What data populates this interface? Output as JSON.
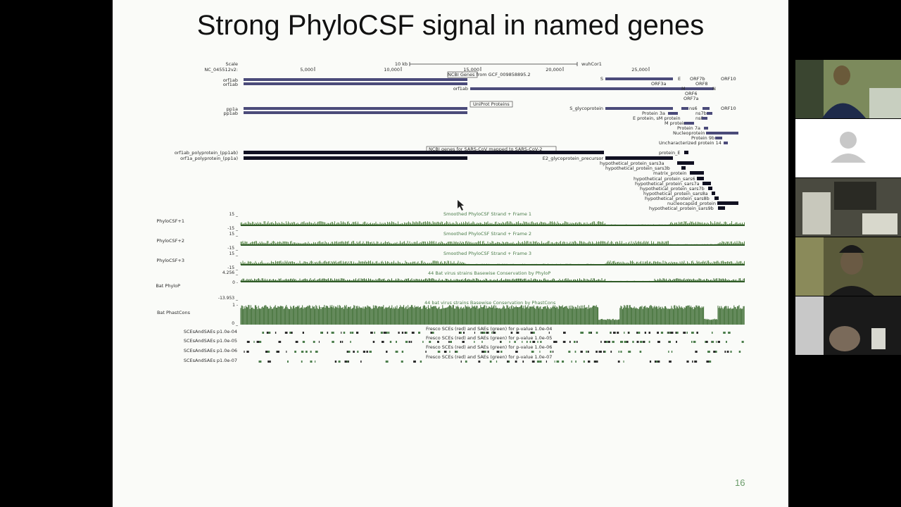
{
  "slide": {
    "title": "Strong PhyloCSF signal in named genes",
    "page_number": "16"
  },
  "browser": {
    "scale_label": "Scale",
    "chrom_label": "NC_045512v2:",
    "scale_bar": "10 kb",
    "assembly": "wuhCor1",
    "ruler": [
      "5,000",
      "10,000",
      "15,000",
      "20,000",
      "25,000"
    ],
    "ncbi_genes_title": "NCBI Genes from GCF_009858895.2",
    "uniprot_title": "UniProt Proteins",
    "ncbi_sars_title": "NCBI genes for SARS-CoV mapped to SARS-CoV-2",
    "left_labels_ncbi": [
      "orf1ab",
      "orf1ab"
    ],
    "left_labels_uniprot": [
      "pp1a",
      "pp1ab"
    ],
    "left_labels_sars": [
      "orf1ab_polyprotein_(pp1ab)",
      "orf1a_polyprotein_(pp1a)"
    ],
    "gene_labels_ncbi": [
      "orf1ab",
      "S",
      "E",
      "ORF7b",
      "ORF10",
      "ORF3a",
      "ORF8",
      "M",
      "N",
      "ORF6",
      "ORF7a"
    ],
    "gene_labels_uniprot": [
      "S_glycoprotein",
      "ns6",
      "ORF10",
      "Protein 3a",
      "ns7b",
      "E protein, sM protein",
      "ns8",
      "M protein",
      "Protein 7a",
      "Nucleoprotein",
      "Protein 9b",
      "Uncharacterized protein 14"
    ],
    "gene_labels_sars": [
      "E2_glycoprotein_precursor",
      "protein_E",
      "hypothetical_protein_sars3a",
      "hypothetical_protein_sars3b",
      "matrix_protein",
      "hypothetical_protein_sars6",
      "hypothetical_protein_sars7a",
      "hypothetical_protein_sars7b",
      "hypothetical_protein_sars8a",
      "hypothetical_protein_sars8b",
      "nucleocapsid_protein",
      "hypothetical_protein_sars9b"
    ],
    "phylocsf_tracks": [
      {
        "label": "PhyloCSF+1",
        "title": "Smoothed PhyloCSF Strand + Frame 1",
        "max": "15 _",
        "min": "-15 _"
      },
      {
        "label": "PhyloCSF+2",
        "title": "Smoothed PhyloCSF Strand + Frame 2",
        "max": "15 _",
        "min": "-15 _"
      },
      {
        "label": "PhyloCSF+3",
        "title": "Smoothed PhyloCSF Strand + Frame 3",
        "max": "15 _",
        "min": "-15 _"
      }
    ],
    "phylop": {
      "label": "Bat PhyloP",
      "title": "44 Bat virus strains Basewise Conservation by PhyloP",
      "max": "4.256 _",
      "zero": "0 -",
      "min": "-13.953 _"
    },
    "phastcons": {
      "label": "Bat PhastCons",
      "title": "44 bat virus strains Basewise Conservation by PhastCons",
      "max": "1 -",
      "min": "0 _"
    },
    "sce_tracks": [
      {
        "label": "SCEsAndSAEs p1.0e-04",
        "title": "Fresco SCEs (red) and SAEs (green) for p-value 1.0e-04"
      },
      {
        "label": "SCEsAndSAEs p1.0e-05",
        "title": "Fresco SCEs (red) and SAEs (green) for p-value 1.0e-05"
      },
      {
        "label": "SCEsAndSAEs p1.0e-06",
        "title": "Fresco SCEs (red) and SAEs (green) for p-value 1.0e-06"
      },
      {
        "label": "SCEsAndSAEs p1.0e-07",
        "title": "Fresco SCEs (red) and SAEs (green) for p-value 1.0e-07"
      }
    ]
  },
  "colors": {
    "ncbi_gene": "#4b4b7a",
    "sars_gene": "#111122",
    "phylocsf": "#5d8a4e",
    "conservation": "#3f6e34"
  }
}
